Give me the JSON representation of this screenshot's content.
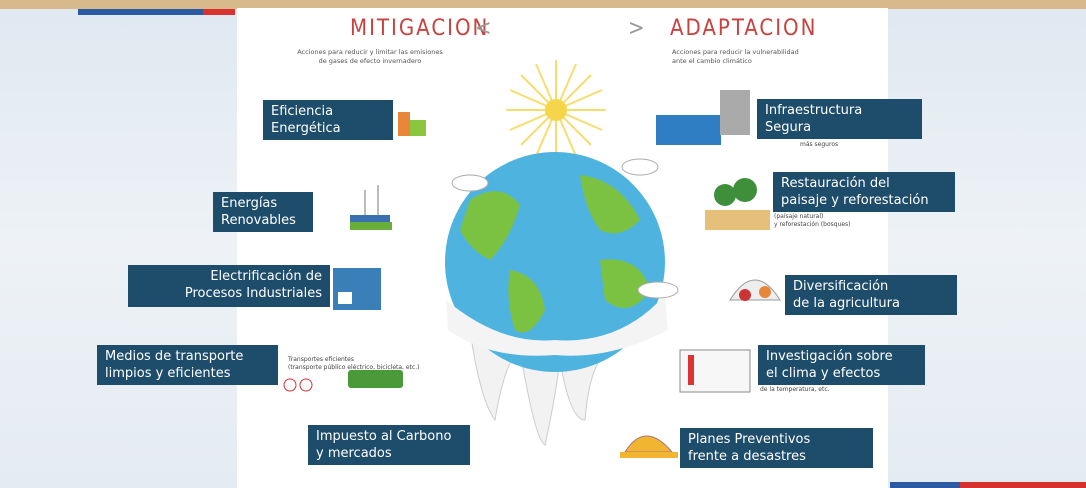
{
  "header": {
    "left_title": "MITIGACION",
    "left_arrow": "<",
    "right_arrow": ">",
    "right_title": "ADAPTACION",
    "left_subtitle": [
      "Acciones para reducir y limitar las emisiones",
      "de gases de efecto invernadero"
    ],
    "right_subtitle": [
      "Acciones para reducir la vulnerabilidad",
      "ante el cambio climático"
    ]
  },
  "mitigation": [
    {
      "label": [
        "Eficiencia",
        "Energética"
      ]
    },
    {
      "label": [
        "Energías",
        "Renovables"
      ]
    },
    {
      "label": [
        "Electrificación de",
        "Procesos Industriales"
      ]
    },
    {
      "label": [
        "Medios de transporte",
        "limpios y eficientes"
      ],
      "note": [
        "Transportes eficientes",
        "(transporte público eléctrico, bicicleta, etc.)"
      ]
    },
    {
      "label": [
        "Impuesto al Carbono",
        "y mercados"
      ]
    }
  ],
  "adaptation": [
    {
      "label": [
        "Infraestructura",
        "Segura"
      ],
      "note": [
        "más seguros"
      ]
    },
    {
      "label": [
        "Restauración del",
        "paisaje y reforestación"
      ],
      "note": [
        "(paisaje natural)",
        "y reforestación (bosques)"
      ]
    },
    {
      "label": [
        "Diversificación",
        "de la agricultura"
      ]
    },
    {
      "label": [
        "Investigación sobre",
        "el clima y efectos"
      ],
      "note": [
        "de la temperatura, etc."
      ]
    },
    {
      "label": [
        "Planes Preventivos",
        "frente a desastres"
      ]
    }
  ]
}
